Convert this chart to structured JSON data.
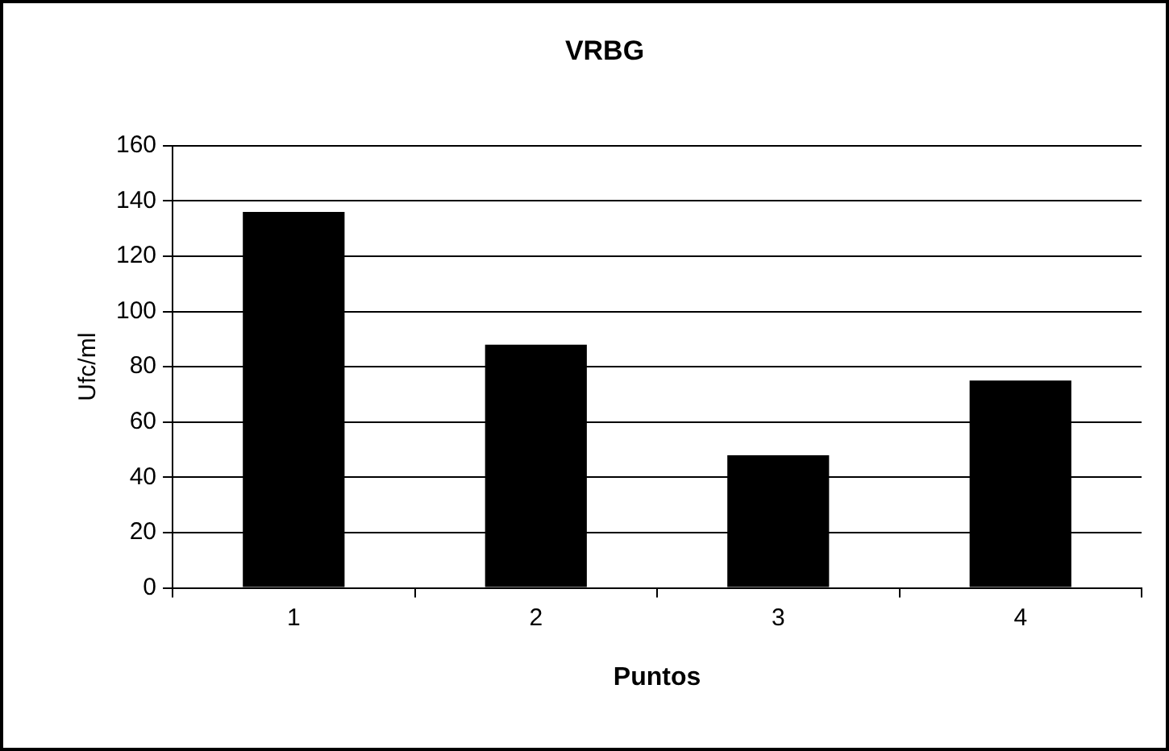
{
  "chart_data": {
    "type": "bar",
    "title": "VRBG",
    "xlabel": "Puntos",
    "ylabel": "Ufc/ml",
    "categories": [
      "1",
      "2",
      "3",
      "4"
    ],
    "values": [
      136,
      88,
      48,
      75
    ],
    "color": "#000000",
    "ylim": [
      0,
      160
    ],
    "yticks": [
      0,
      20,
      40,
      60,
      80,
      100,
      120,
      140,
      160
    ],
    "grid": "y",
    "legend": false
  }
}
